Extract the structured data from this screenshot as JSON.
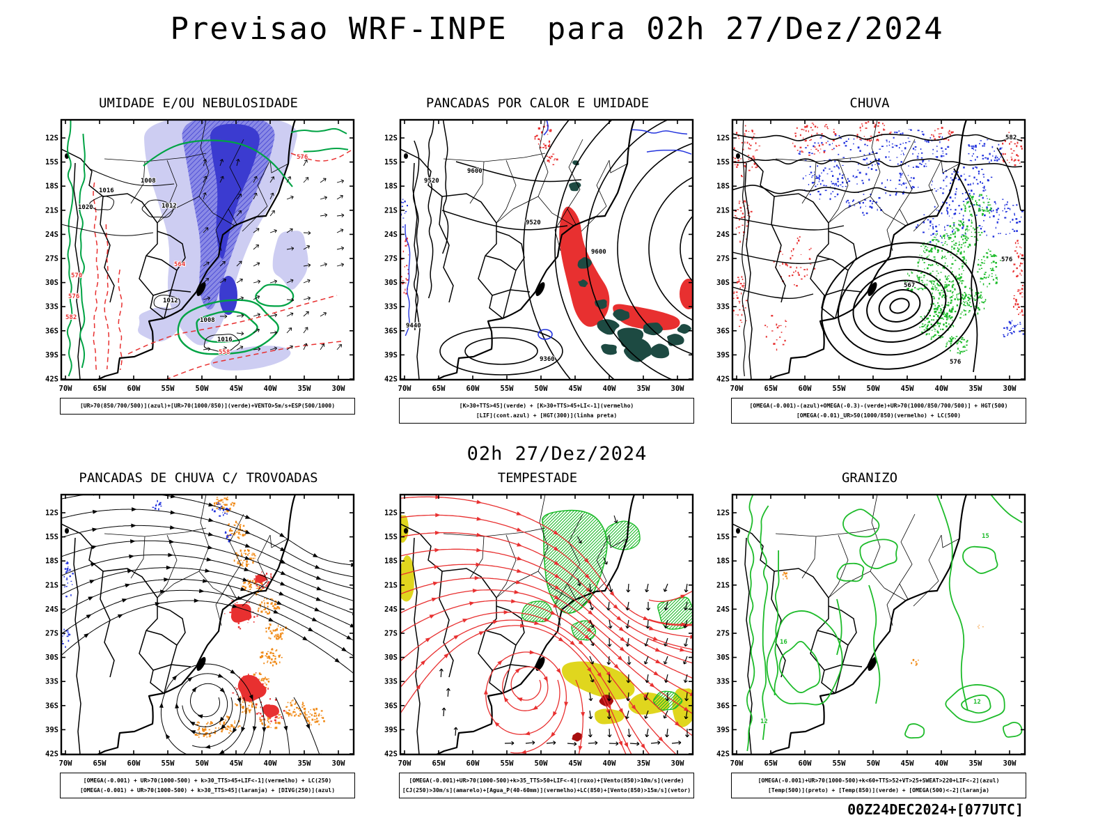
{
  "page": {
    "title": "Previsao WRF-INPE  para 02h 27/Dez/2024",
    "middle_label": "02h 27/Dez/2024",
    "footer_stamp": "00Z24DEC2024+[077UTC]"
  },
  "axis": {
    "lat_labels": [
      "12S",
      "15S",
      "18S",
      "21S",
      "24S",
      "27S",
      "30S",
      "33S",
      "36S",
      "39S",
      "42S"
    ],
    "lon_labels": [
      "70W",
      "65W",
      "60W",
      "55W",
      "50W",
      "45W",
      "40W",
      "35W",
      "30W"
    ]
  },
  "panels": [
    {
      "id": "umidade",
      "title": "UMIDADE E/OU NEBULOSIDADE",
      "caption_lines": [
        "[UR>70(850/700/500)](azul)+[UR>70(1000/850)](verde)+VENTO>5m/s+ESP(500/1000)"
      ],
      "contour_labels": {
        "pressure_black": [
          "1016",
          "1020",
          "1008",
          "1012",
          "1012",
          "1016",
          "1008"
        ],
        "thickness_red": [
          "570",
          "576",
          "582",
          "564",
          "558",
          "576"
        ]
      }
    },
    {
      "id": "calor",
      "title": "PANCADAS POR CALOR E UMIDADE",
      "caption_lines": [
        "[K>30+TTS>45](verde) + [K>30+TTS>45+LI<-1](vermelho)",
        "[LIF](cont.azul) + [HGT(300)](linha preta)"
      ],
      "contour_labels": {
        "height_black": [
          "9520",
          "9600",
          "9520",
          "9600",
          "9440",
          "9360"
        ]
      }
    },
    {
      "id": "chuva",
      "title": "CHUVA",
      "caption_lines": [
        "[OMEGA(-0.001)-(azul)+OMEGA(-0.3)-(verde)+UR>70(1000/850/700/500)] + HGT(500)",
        "[OMEGA(-0.01)_UR>50(1000/850)(vermelho) + LC(500)"
      ],
      "contour_labels": {
        "height_black": [
          "567",
          "576",
          "582",
          "576"
        ]
      }
    },
    {
      "id": "trovoadas",
      "title": "PANCADAS DE CHUVA C/ TROVOADAS",
      "caption_lines": [
        "[OMEGA(-0.001) + UR>70(1000-500) + k>30_TTS>45+LIF<-1](vermelho) + LC(250)",
        "[OMEGA(-0.001) + UR>70(1000-500) + k>30_TTS>45](laranja) + [DIVG(250)](azul)"
      ]
    },
    {
      "id": "tempestade",
      "title": "TEMPESTADE",
      "caption_lines": [
        "[OMEGA(-0.001)+UR>70(1000-500)+k>35_TTS>50+LIF<-4](roxo)+[Vento(850)>10m/s](verde)",
        "[CJ(250)>30m/s](amarelo)+[Agua_P(40-60mm)](vermelho)+LC(850)+[Vento(850)>15m/s](vetor)"
      ]
    },
    {
      "id": "granizo",
      "title": "GRANIZO",
      "caption_lines": [
        "[OMEGA(-0.001)+UR>70(1000-500)+k<60+TTS>52+VT>25+SWEAT>220+LIF<-2](azul)",
        "[Temp(500)](preto) + [Temp(850)](verde) + [OMEGA(500)<-2](laranja)"
      ],
      "contour_labels": {
        "green": [
          "15",
          "16",
          "12",
          "12"
        ]
      }
    }
  ],
  "colors": {
    "moisture_dark": "#3b3bd0",
    "moisture_mid": "#8a8ae6",
    "moisture_light": "#cdcdf2",
    "green_contour": "#00a344",
    "green_fill": "#1dbb2a",
    "red": "#e83030",
    "dark_red": "#a80f0f",
    "orange": "#f08a18",
    "teal_dark": "#1d4a42",
    "yellow": "#e0d61e",
    "blue_contour": "#2233dd",
    "black": "#000000"
  }
}
